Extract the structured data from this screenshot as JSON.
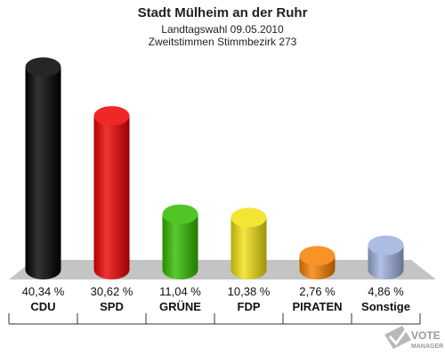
{
  "chart_data": {
    "type": "bar",
    "title": "Stadt Mülheim an der Ruhr",
    "subtitle": [
      "Landtagswahl 09.05.2010",
      "Zweitstimmen Stimmbezirk 273"
    ],
    "categories": [
      "CDU",
      "SPD",
      "GRÜNE",
      "FDP",
      "PIRATEN",
      "Sonstige"
    ],
    "values": [
      40.34,
      30.62,
      11.04,
      10.38,
      2.76,
      4.86
    ],
    "value_labels": [
      "40,34 %",
      "30,62 %",
      "11,04 %",
      "10,38 %",
      "2,76 %",
      "4,86 %"
    ],
    "colors": [
      "#000000",
      "#ee0000",
      "#33bb00",
      "#f2e010",
      "#f78000",
      "#9fb0dd"
    ],
    "ylim": [
      0,
      42
    ],
    "grid": false,
    "legend": "none"
  },
  "logo": {
    "line1": "VOTE",
    "line2": "MANAGER",
    "icon": "ballot-check-icon"
  }
}
